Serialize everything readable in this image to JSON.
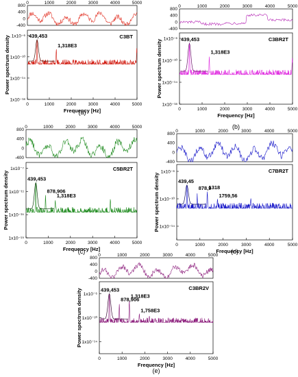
{
  "chart_data": [
    {
      "id": "a",
      "type": "line",
      "caption": "(a)",
      "specimen": "C3BT",
      "color": "#d11a0f",
      "top_line_color": "#e0281a",
      "dark_line_color": "#4a1006",
      "xlabel": "Frequency [Hz]",
      "ylabel": "Power spectrum density",
      "xlim": [
        0,
        5000
      ],
      "top_ylim": [
        -400,
        800
      ],
      "top_ticks": [
        "800",
        "400",
        "0",
        "-400"
      ],
      "x_ticks": [
        "0",
        "1000",
        "2000",
        "3000",
        "4000",
        "5000"
      ],
      "y_ticks": [
        "1x10⁻⁶",
        "1x10⁻¹⁰",
        "1x10⁻¹⁴",
        "1x10⁻¹⁸"
      ],
      "y_exp": [
        -6,
        -10,
        -14,
        -18
      ],
      "ylim_exp": [
        -18,
        -5
      ],
      "baseline_exp": -11.4,
      "noise": 0.9,
      "top_mode": "dense",
      "peaks": [
        {
          "label": "439,453",
          "x": 439.453,
          "exp": -6.8
        },
        {
          "label": "1,318E3",
          "x": 1318,
          "exp": -8.6
        }
      ],
      "extra_peaks": [
        {
          "x": 4990,
          "exp": -8.5
        }
      ]
    },
    {
      "id": "b",
      "type": "line",
      "caption": "(b)",
      "specimen": "C3BR2T",
      "color": "#e02be0",
      "top_line_color": "#b01ab0",
      "dark_line_color": "#6a0f6a",
      "xlabel": "Frequency [Hz]",
      "ylabel": "Power spectrum density",
      "xlim": [
        0,
        5000
      ],
      "top_ylim": [
        -400,
        800
      ],
      "top_ticks": [
        "800",
        "400",
        "0",
        "-400"
      ],
      "x_ticks": [
        "0",
        "1000",
        "2000",
        "3000",
        "4000",
        "5000"
      ],
      "y_ticks": [
        "1x10⁻⁶",
        "1x10⁻¹⁰",
        "1x10⁻¹⁴",
        "1x10⁻¹⁸"
      ],
      "y_exp": [
        -6,
        -10,
        -14,
        -18
      ],
      "ylim_exp": [
        -18,
        -5
      ],
      "baseline_exp": -12.6,
      "noise": 0.9,
      "top_mode": "step",
      "peaks": [
        {
          "label": "439,453",
          "x": 439.453,
          "exp": -6.9
        },
        {
          "label": "1,318E3",
          "x": 1318,
          "exp": -9.2
        }
      ],
      "extra_peaks": [
        {
          "x": 4990,
          "exp": -9.6
        }
      ]
    },
    {
      "id": "c",
      "type": "line",
      "caption": "(c)",
      "specimen": "C5BR2T",
      "color": "#1e8a1e",
      "top_line_color": "#1e8a1e",
      "dark_line_color": "#0a3a0a",
      "xlabel": "Frequency [Hz]",
      "ylabel": "Power spectrum density",
      "xlim": [
        0,
        5000
      ],
      "top_ylim": [
        -400,
        800
      ],
      "top_ticks": [
        "800",
        "400",
        "0",
        "-400"
      ],
      "x_ticks": [
        "0",
        "1000",
        "2000",
        "3000",
        "4000",
        "5000"
      ],
      "y_ticks": [
        "1x10⁻⁷",
        "1x10⁻¹¹",
        "1x10⁻¹⁵",
        "1x10⁻¹⁹"
      ],
      "y_exp": [
        -7,
        -11,
        -15,
        -19
      ],
      "ylim_exp": [
        -19,
        -6
      ],
      "baseline_exp": -14.6,
      "noise": 0.9,
      "top_mode": "dense",
      "peaks": [
        {
          "label": "439,453",
          "x": 439.453,
          "exp": -9.5
        },
        {
          "label": "878,906",
          "x": 878.906,
          "exp": -11.6
        },
        {
          "label": "1,318E3",
          "x": 1318,
          "exp": -12.4
        }
      ],
      "extra_peaks": [
        {
          "x": 2300,
          "exp": -18.5,
          "down": true
        },
        {
          "x": 3800,
          "exp": -12.2
        }
      ]
    },
    {
      "id": "d",
      "type": "line",
      "caption": "(d)",
      "specimen": "C7BR2T",
      "color": "#1414c8",
      "top_line_color": "#1414c8",
      "dark_line_color": "#080860",
      "xlabel": "Frequency [Hz]",
      "ylabel": "Power spectrum density",
      "xlim": [
        0,
        5000
      ],
      "top_ylim": [
        -400,
        800
      ],
      "top_ticks": [
        "800",
        "400",
        "0",
        "-400"
      ],
      "x_ticks": [
        "0",
        "1000",
        "2000",
        "3000",
        "4000",
        "5000"
      ],
      "y_ticks": [
        "1x10⁻⁶",
        "1x10⁻¹⁰",
        "1x10⁻¹⁴"
      ],
      "y_exp": [
        -6,
        -10,
        -14
      ],
      "ylim_exp": [
        -16,
        -5
      ],
      "baseline_exp": -11.4,
      "noise": 0.8,
      "top_mode": "dense",
      "peaks": [
        {
          "label": "439,45",
          "x": 439.45,
          "exp": -8.0
        },
        {
          "label": "878,9",
          "x": 878.9,
          "exp": -9.0
        },
        {
          "label": "1318",
          "x": 1318,
          "exp": -8.9
        },
        {
          "label": "1759,56",
          "x": 1759.56,
          "exp": -10.1
        }
      ],
      "extra_peaks": [
        {
          "x": 850,
          "exp": -15.8,
          "down": true
        },
        {
          "x": 3200,
          "exp": -9.8
        }
      ]
    },
    {
      "id": "e",
      "type": "line",
      "caption": "(e)",
      "specimen": "C3BR2V",
      "color": "#8a1a7a",
      "top_line_color": "#8a1a7a",
      "dark_line_color": "#3a0836",
      "xlabel": "Frequency [Hz]",
      "ylabel": "Power spectrum density",
      "xlim": [
        0,
        5000
      ],
      "top_ylim": [
        -400,
        800
      ],
      "top_ticks": [
        "800",
        "400",
        "0",
        "-400"
      ],
      "x_ticks": [
        "0",
        "1000",
        "2000",
        "3000",
        "4000",
        "5000"
      ],
      "y_ticks": [
        "1x10⁻⁶",
        "1x10⁻¹⁰",
        "1x10⁻¹⁴"
      ],
      "y_exp": [
        -6,
        -10,
        -14
      ],
      "ylim_exp": [
        -16,
        -4
      ],
      "baseline_exp": -10.8,
      "noise": 0.8,
      "top_mode": "dense",
      "peaks": [
        {
          "label": "439,453",
          "x": 439.453,
          "exp": -6.0
        },
        {
          "label": "878,906",
          "x": 878.906,
          "exp": -7.6
        },
        {
          "label": "1,318E3",
          "x": 1318,
          "exp": -7.0
        },
        {
          "label": "1,758E3",
          "x": 1758,
          "exp": -9.4
        }
      ],
      "extra_peaks": [
        {
          "x": 2200,
          "exp": -9.6
        }
      ]
    }
  ]
}
